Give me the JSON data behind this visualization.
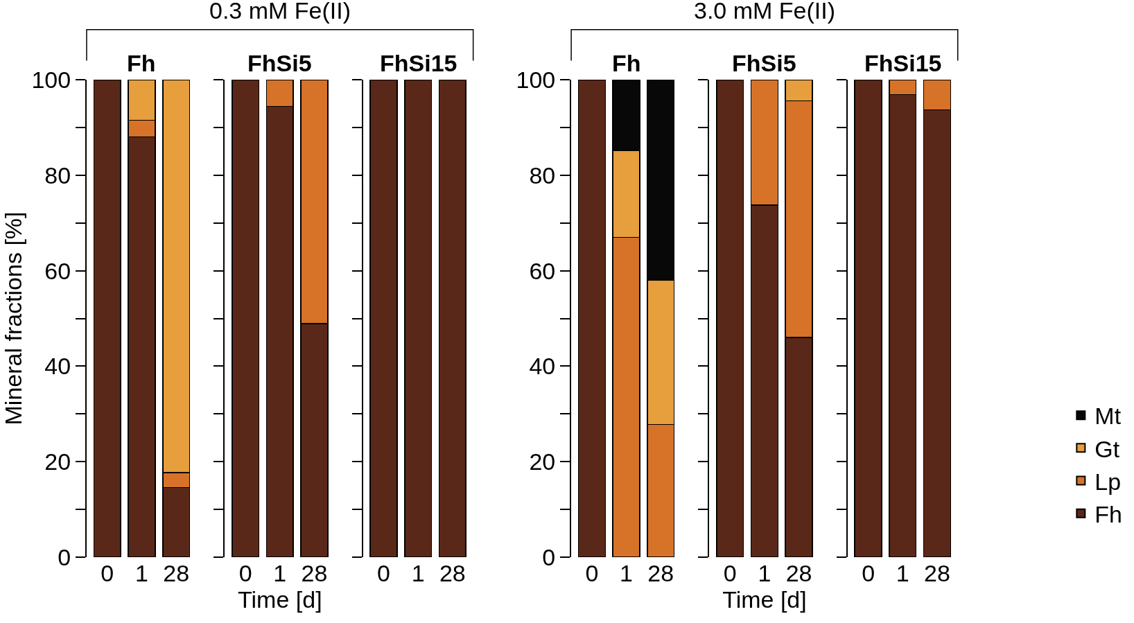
{
  "chart_data": [
    {
      "type": "bar",
      "stacked": true,
      "title": "Fh",
      "annotations": [
        "0.3 mM Fe(II)"
      ],
      "ylabel": "Mineral fractions [%]",
      "categories": [
        "0",
        "1",
        "28"
      ],
      "ylim": [
        0,
        100
      ],
      "yticks": [
        0,
        {
          "value": 10,
          "label": null
        },
        20,
        {
          "value": 30,
          "label": null
        },
        40,
        {
          "value": 50,
          "label": null
        },
        60,
        {
          "value": 70,
          "label": null
        },
        80,
        {
          "value": 90,
          "label": null
        },
        100
      ],
      "series": [
        {
          "color": "#5a2819",
          "values": [
            100,
            88,
            14.6
          ]
        },
        {
          "color": "#d77229",
          "values": [
            null,
            3.5,
            3.1
          ]
        },
        {
          "color": "#e79e3c",
          "values": [
            null,
            8.5,
            82.3
          ]
        }
      ]
    },
    {
      "type": "bar",
      "stacked": true,
      "title": "FhSi5",
      "xlabel": "Time [d]",
      "categories": [
        "0",
        "1",
        "28"
      ],
      "ylim": [
        0,
        100
      ],
      "yticks": [
        0,
        {
          "value": 10,
          "label": null
        },
        20,
        {
          "value": 30,
          "label": null
        },
        40,
        {
          "value": 50,
          "label": null
        },
        60,
        {
          "value": 70,
          "label": null
        },
        80,
        {
          "value": 90,
          "label": null
        },
        100
      ],
      "tick_labels": "x",
      "series": [
        {
          "color": "#5a2819",
          "values": [
            100,
            94.4,
            48.9
          ]
        },
        {
          "color": "#d77229",
          "values": [
            null,
            5.6,
            51.1
          ]
        }
      ]
    },
    {
      "type": "bar",
      "stacked": true,
      "title": "FhSi15",
      "categories": [
        "0",
        "1",
        "28"
      ],
      "ylim": [
        0,
        100
      ],
      "yticks": [
        0,
        {
          "value": 10,
          "label": null
        },
        20,
        {
          "value": 30,
          "label": null
        },
        40,
        {
          "value": 50,
          "label": null
        },
        60,
        {
          "value": 70,
          "label": null
        },
        80,
        {
          "value": 90,
          "label": null
        },
        100
      ],
      "tick_labels": "x",
      "series": [
        {
          "color": "#5a2819",
          "values": [
            100,
            100,
            100
          ]
        }
      ]
    },
    {
      "type": "bar",
      "stacked": true,
      "title": "Fh",
      "annotations": [
        "3.0 mM Fe(II)"
      ],
      "categories": [
        "0",
        "1",
        "28"
      ],
      "ylim": [
        0,
        100
      ],
      "yticks": [
        0,
        {
          "value": 10,
          "label": null
        },
        20,
        {
          "value": 30,
          "label": null
        },
        40,
        {
          "value": 50,
          "label": null
        },
        60,
        {
          "value": 70,
          "label": null
        },
        80,
        {
          "value": 90,
          "label": null
        },
        100
      ],
      "series": [
        {
          "color": "#5a2819",
          "values": [
            100,
            null,
            null
          ]
        },
        {
          "color": "#d77229",
          "values": [
            null,
            67.0,
            27.8
          ]
        },
        {
          "color": "#e79e3c",
          "values": [
            null,
            18.2,
            30.2
          ]
        },
        {
          "color": "#080808",
          "values": [
            null,
            14.8,
            42.0
          ]
        }
      ]
    },
    {
      "type": "bar",
      "stacked": true,
      "title": "FhSi5",
      "xlabel": "Time [d]",
      "categories": [
        "0",
        "1",
        "28"
      ],
      "ylim": [
        0,
        100
      ],
      "yticks": [
        0,
        {
          "value": 10,
          "label": null
        },
        20,
        {
          "value": 30,
          "label": null
        },
        40,
        {
          "value": 50,
          "label": null
        },
        60,
        {
          "value": 70,
          "label": null
        },
        80,
        {
          "value": 90,
          "label": null
        },
        100
      ],
      "tick_labels": "x",
      "series": [
        {
          "color": "#5a2819",
          "values": [
            100,
            73.7,
            46.0
          ]
        },
        {
          "color": "#d77229",
          "values": [
            null,
            26.3,
            49.6
          ]
        },
        {
          "color": "#e79e3c",
          "values": [
            null,
            null,
            4.4
          ]
        }
      ]
    },
    {
      "type": "bar",
      "stacked": true,
      "title": "FhSi15",
      "categories": [
        "0",
        "1",
        "28"
      ],
      "ylim": [
        0,
        100
      ],
      "yticks": [
        0,
        {
          "value": 10,
          "label": null
        },
        20,
        {
          "value": 30,
          "label": null
        },
        40,
        {
          "value": 50,
          "label": null
        },
        60,
        {
          "value": 70,
          "label": null
        },
        80,
        {
          "value": 90,
          "label": null
        },
        100
      ],
      "tick_labels": "x",
      "legend": "right",
      "series": [
        {
          "name": "Fh",
          "color": "#5a2819",
          "values": [
            100,
            96.9,
            93.7
          ]
        },
        {
          "name": "Lp",
          "color": "#d77229",
          "values": [
            null,
            3.1,
            6.3
          ]
        },
        {
          "name": "Gt",
          "color": "#e79e3c",
          "values": [
            null,
            null,
            null
          ]
        },
        {
          "name": "Mt",
          "color": "#080808",
          "values": [
            null,
            null,
            null
          ]
        }
      ]
    }
  ]
}
